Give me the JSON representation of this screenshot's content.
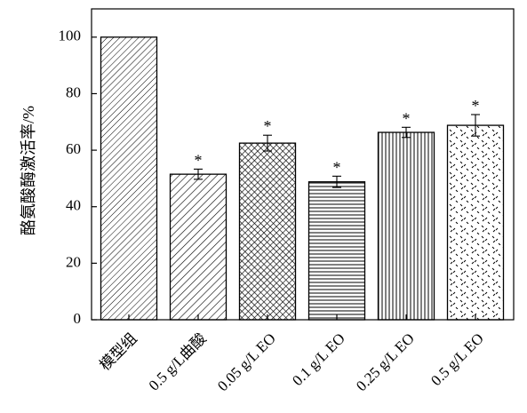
{
  "chart_data": {
    "type": "bar",
    "ylabel": "酪氨酸酶激活率/%",
    "xlabel": "",
    "ylim": [
      0,
      110
    ],
    "yticks": [
      0,
      20,
      40,
      60,
      80,
      100
    ],
    "grid": false,
    "categories": [
      "模型组",
      "0.5 g/L曲酸",
      "0.05 g/L EO",
      "0.1 g/L EO",
      "0.25 g/L EO",
      "0.5 g/L EO"
    ],
    "values": [
      100,
      51.5,
      62.5,
      48.8,
      66.3,
      68.8
    ],
    "errors": [
      0,
      1.8,
      2.8,
      2.0,
      1.8,
      3.8
    ],
    "significance": [
      "",
      "*",
      "*",
      "*",
      "*",
      "*"
    ],
    "patterns": [
      "diag-dense",
      "diag-wide",
      "crosshatch",
      "horizontal",
      "vertical",
      "dots"
    ]
  }
}
